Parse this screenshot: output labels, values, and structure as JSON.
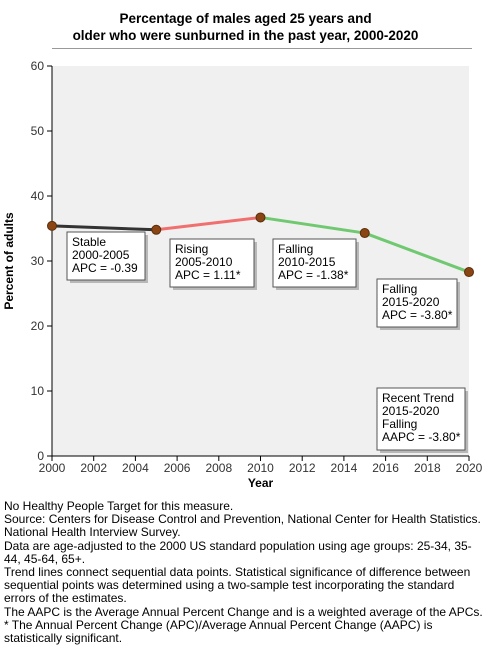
{
  "chart_data": {
    "type": "line",
    "title": "Percentage of males aged 25 years and\nolder who were sunburned in the past year, 2000-2020",
    "xlabel": "Year",
    "ylabel": "Percent of adults",
    "xlim": [
      2000,
      2020
    ],
    "ylim": [
      0,
      60
    ],
    "x_ticks": [
      "2000",
      "2002",
      "2004",
      "2006",
      "2008",
      "2010",
      "2012",
      "2014",
      "2016",
      "2018",
      "2020"
    ],
    "y_ticks": [
      "0",
      "10",
      "20",
      "30",
      "40",
      "50",
      "60"
    ],
    "grid": false,
    "x": [
      2000,
      2005,
      2010,
      2015,
      2020
    ],
    "values": [
      35.4,
      34.8,
      36.7,
      34.3,
      28.3
    ],
    "segments": [
      {
        "from": 2000,
        "to": 2005,
        "color": "#333333"
      },
      {
        "from": 2005,
        "to": 2010,
        "color": "#f07070"
      },
      {
        "from": 2010,
        "to": 2015,
        "color": "#70c870"
      },
      {
        "from": 2015,
        "to": 2020,
        "color": "#70c870"
      }
    ],
    "annotations": [
      {
        "lines": [
          "Stable",
          "2000-2005",
          "APC = -0.39"
        ]
      },
      {
        "lines": [
          "Rising",
          "2005-2010",
          "APC =  1.11*"
        ]
      },
      {
        "lines": [
          "Falling",
          "2010-2015",
          "APC = -1.38*"
        ]
      },
      {
        "lines": [
          "Falling",
          "2015-2020",
          "APC = -3.80*"
        ]
      },
      {
        "lines": [
          "Recent Trend",
          "2015-2020",
          "Falling",
          "AAPC = -3.80*"
        ]
      }
    ],
    "colors": {
      "plot_bg": "#f0f0f0",
      "marker_fill": "#8b4513",
      "marker_stroke": "#5a2d0c"
    }
  },
  "notes": [
    "No Healthy People Target for this measure.",
    "Source: Centers for Disease Control and Prevention, National Center for Health Statistics. National Health Interview Survey.",
    "Data are age-adjusted to the 2000 US standard population using age groups: 25-34, 35-44, 45-64, 65+.",
    "Trend lines connect sequential data points. Statistical significance of difference between sequential points was determined using a two-sample test incorporating the standard errors of the estimates.",
    "The AAPC is the Average Annual Percent Change and is a weighted average of the APCs.",
    "* The Annual Percent Change (APC)/Average Annual Percent Change (AAPC) is statistically significant."
  ]
}
